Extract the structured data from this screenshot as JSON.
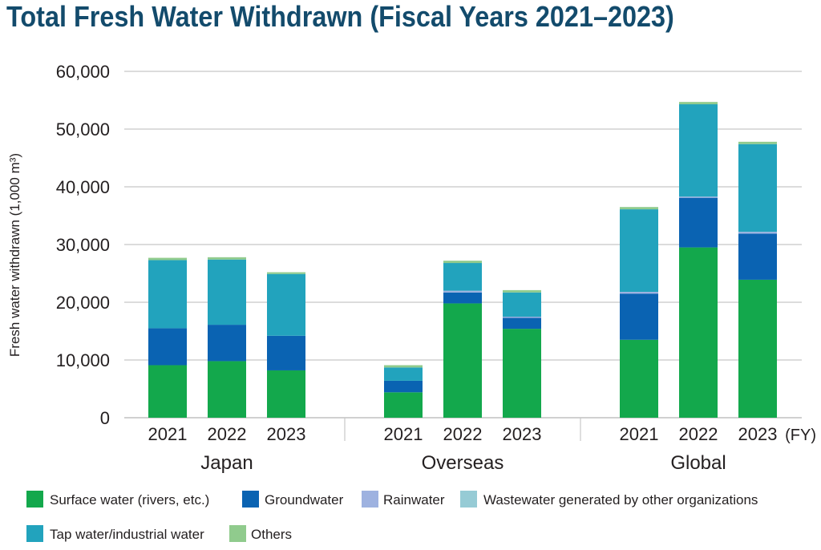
{
  "chart_data": {
    "type": "bar",
    "stacked": true,
    "title": "Total Fresh Water Withdrawn (Fiscal Years 2021–2023)",
    "ylabel": "Fresh water withdrawn (1,000 m³)",
    "xlabel": "(FY)",
    "ylim": [
      0,
      60000
    ],
    "yticks": [
      0,
      10000,
      20000,
      30000,
      40000,
      50000,
      60000
    ],
    "ytick_labels": [
      "0",
      "10,000",
      "20,000",
      "30,000",
      "40,000",
      "50,000",
      "60,000"
    ],
    "grid": true,
    "legend_position": "bottom",
    "groups": [
      {
        "label": "Japan",
        "categories": [
          "2021",
          "2022",
          "2023"
        ]
      },
      {
        "label": "Overseas",
        "categories": [
          "2021",
          "2022",
          "2023"
        ]
      },
      {
        "label": "Global",
        "categories": [
          "2021",
          "2022",
          "2023"
        ]
      }
    ],
    "series": [
      {
        "name": "Surface water (rivers, etc.)",
        "color": "#13a84c",
        "values": {
          "Japan": [
            9100,
            9800,
            8200
          ],
          "Overseas": [
            4400,
            19800,
            15400
          ],
          "Global": [
            13500,
            29500,
            23900
          ]
        }
      },
      {
        "name": "Groundwater",
        "color": "#0a63b2",
        "values": {
          "Japan": [
            6400,
            6300,
            6000
          ],
          "Overseas": [
            2000,
            1900,
            1900
          ],
          "Global": [
            8000,
            8600,
            8000
          ]
        }
      },
      {
        "name": "Rainwater",
        "color": "#9eb2e0",
        "values": {
          "Japan": [
            0,
            0,
            0
          ],
          "Overseas": [
            0,
            300,
            200
          ],
          "Global": [
            300,
            200,
            300
          ]
        }
      },
      {
        "name": "Wastewater generated by other organizations",
        "color": "#96cbd5",
        "values": {
          "Japan": [
            0,
            0,
            0
          ],
          "Overseas": [
            0,
            0,
            0
          ],
          "Global": [
            0,
            0,
            0
          ]
        }
      },
      {
        "name": "Tap water/industrial water",
        "color": "#22a3bd",
        "values": {
          "Japan": [
            11800,
            11300,
            10700
          ],
          "Overseas": [
            2300,
            4800,
            4200
          ],
          "Global": [
            14300,
            16000,
            15200
          ]
        }
      },
      {
        "name": "Others",
        "color": "#90cb8d",
        "values": {
          "Japan": [
            400,
            400,
            300
          ],
          "Overseas": [
            400,
            400,
            400
          ],
          "Global": [
            400,
            400,
            400
          ]
        }
      }
    ]
  },
  "colors": {
    "title": "#134b6c",
    "text": "#231f20",
    "grid": "#c8c8c8",
    "baseline": "#b3b3b3"
  }
}
